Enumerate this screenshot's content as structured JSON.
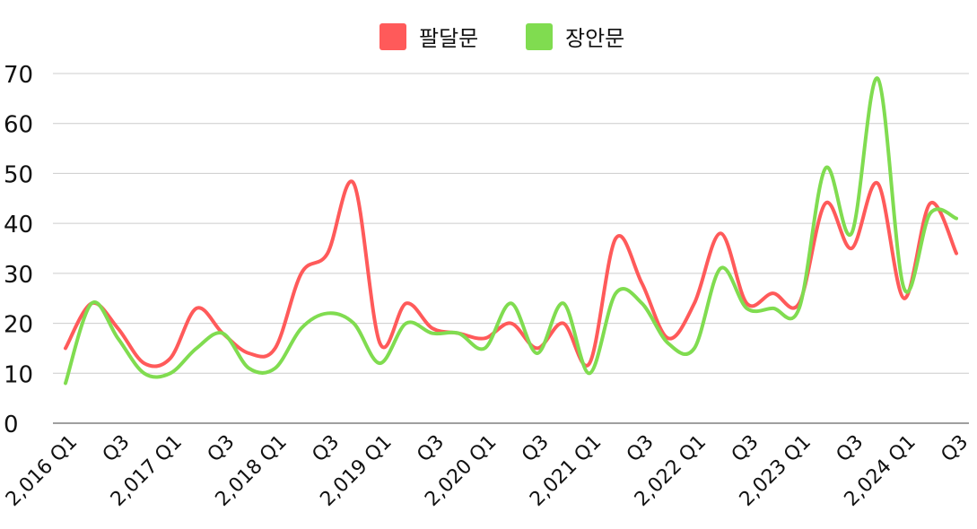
{
  "chart_data": {
    "type": "line",
    "title": "",
    "xlabel": "",
    "ylabel": "",
    "ylim": [
      0,
      70
    ],
    "yticks": [
      "0",
      "10",
      "20",
      "30",
      "40",
      "50",
      "60",
      "70"
    ],
    "grid": true,
    "legend_position": "top-center",
    "x": [
      "2016 Q1",
      "2016 Q2",
      "2016 Q3",
      "2016 Q4",
      "2017 Q1",
      "2017 Q2",
      "2017 Q3",
      "2017 Q4",
      "2018 Q1",
      "2018 Q2",
      "2018 Q3",
      "2018 Q4",
      "2019 Q1",
      "2019 Q2",
      "2019 Q3",
      "2019 Q4",
      "2020 Q1",
      "2020 Q2",
      "2020 Q3",
      "2020 Q4",
      "2021 Q1",
      "2021 Q2",
      "2021 Q3",
      "2021 Q4",
      "2022 Q1",
      "2022 Q2",
      "2022 Q3",
      "2022 Q4",
      "2023 Q1",
      "2023 Q2",
      "2023 Q3",
      "2023 Q4",
      "2024 Q1",
      "2024 Q2",
      "2024 Q3"
    ],
    "tick_labels": [
      "2,016 Q1",
      "Q3",
      "2,017 Q1",
      "Q3",
      "2,018 Q1",
      "Q3",
      "2,019 Q1",
      "Q3",
      "2,020 Q1",
      "Q3",
      "2,021 Q1",
      "Q3",
      "2,022 Q1",
      "Q3",
      "2,023 Q1",
      "Q3",
      "2,024 Q1",
      "Q3"
    ],
    "series": [
      {
        "name": "팔달문",
        "color": "#ff5a5a",
        "values": [
          15,
          24,
          19,
          12,
          13,
          23,
          18,
          14,
          15,
          30,
          34,
          48,
          16,
          24,
          19,
          18,
          17,
          20,
          15,
          20,
          12,
          37,
          28,
          17,
          24,
          38,
          24,
          26,
          24,
          44,
          35,
          48,
          25,
          44,
          34
        ]
      },
      {
        "name": "장안문",
        "color": "#80dc50",
        "values": [
          8,
          24,
          17,
          10,
          10,
          15,
          18,
          11,
          11,
          19,
          22,
          20,
          12,
          20,
          18,
          18,
          15,
          24,
          14,
          24,
          10,
          26,
          24,
          16,
          15,
          31,
          23,
          23,
          23,
          51,
          38,
          69,
          27,
          42,
          41
        ]
      }
    ]
  }
}
